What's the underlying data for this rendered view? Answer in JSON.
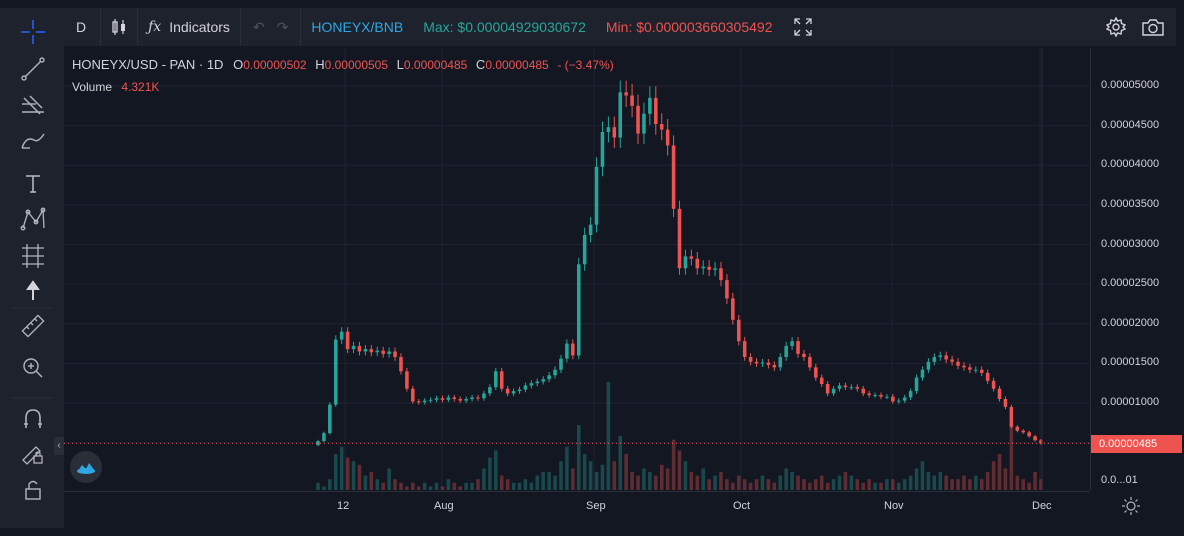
{
  "toolbar": {
    "interval": "D",
    "indicators_label": "Indicators",
    "symbol_link": "HONEYX/BNB",
    "max_label": "Max: $0.00004929030672",
    "min_label": "Min: $0.000003660305492"
  },
  "legend": {
    "symbol": "HONEYX/USD - PAN · 1D",
    "o_label": "O",
    "o_value": "0.00000502",
    "h_label": "H",
    "h_value": "0.00000505",
    "l_label": "L",
    "l_value": "0.00000485",
    "c_label": "C",
    "c_value": "0.00000485",
    "change": "- (−3.47%)",
    "volume_label": "Volume",
    "volume_value": "4.321K"
  },
  "price_axis": {
    "labels": [
      "0.00005000",
      "0.00004500",
      "0.00004000",
      "0.00003500",
      "0.00003000",
      "0.00002500",
      "0.00002000",
      "0.00001500",
      "0.00001000",
      "0.0...01"
    ],
    "last_price": "0.00000485"
  },
  "time_axis": {
    "labels": [
      "12",
      "Aug",
      "Sep",
      "Oct",
      "Nov",
      "Dec"
    ]
  },
  "colors": {
    "up": "#26a69a",
    "down": "#ef5350",
    "background": "#131722",
    "panel": "#1e222d",
    "accent": "#2962ff"
  },
  "icons": {
    "sidebar": [
      "crosshair-icon",
      "trendline-icon",
      "fib-icon",
      "brush-icon",
      "text-icon",
      "pattern-icon",
      "measure-icon",
      "arrow-up-icon",
      "ruler-icon",
      "zoom-icon",
      "magnet-icon",
      "lock-drawings-icon",
      "lock-icon"
    ],
    "top": [
      "candles-icon",
      "fx-icon",
      "undo-icon",
      "redo-icon",
      "fullscreen-icon",
      "settings-icon",
      "camera-icon"
    ]
  },
  "chart_data": {
    "type": "candlestick",
    "ylim": [
      0,
      5.3e-05
    ],
    "x_start": "2021-07-09",
    "x_end": "2021-12-01",
    "series": [
      {
        "name": "price",
        "values": [
          5.2e-06,
          6.2e-06,
          9.8e-06,
          1.8e-05,
          1.9e-05,
          1.68e-05,
          1.72e-05,
          1.65e-05,
          1.68e-05,
          1.64e-05,
          1.66e-05,
          1.62e-05,
          1.65e-05,
          1.58e-05,
          1.4e-05,
          1.18e-05,
          1.02e-05,
          1.01e-05,
          1.03e-05,
          1.04e-05,
          1.06e-05,
          1.04e-05,
          1.07e-05,
          1.05e-05,
          1.03e-05,
          1.05e-05,
          1.07e-05,
          1.06e-05,
          1.12e-05,
          1.2e-05,
          1.4e-05,
          1.18e-05,
          1.12e-05,
          1.15e-05,
          1.17e-05,
          1.22e-05,
          1.25e-05,
          1.27e-05,
          1.3e-05,
          1.35e-05,
          1.42e-05,
          1.56e-05,
          1.75e-05,
          1.6e-05,
          2.75e-05,
          3.12e-05,
          3.25e-05,
          3.98e-05,
          4.42e-05,
          4.48e-05,
          4.35e-05,
          4.92e-05,
          4.88e-05,
          4.75e-05,
          4.4e-05,
          4.65e-05,
          4.85e-05,
          4.52e-05,
          4.45e-05,
          4.25e-05,
          3.45e-05,
          2.7e-05,
          2.85e-05,
          2.82e-05,
          2.7e-05,
          2.72e-05,
          2.68e-05,
          2.7e-05,
          2.55e-05,
          2.32e-05,
          2.05e-05,
          1.78e-05,
          1.58e-05,
          1.52e-05,
          1.5e-05,
          1.51e-05,
          1.48e-05,
          1.45e-05,
          1.58e-05,
          1.72e-05,
          1.78e-05,
          1.62e-05,
          1.58e-05,
          1.45e-05,
          1.32e-05,
          1.24e-05,
          1.12e-05,
          1.18e-05,
          1.22e-05,
          1.2e-05,
          1.2e-05,
          1.18e-05,
          1.12e-05,
          1.1e-05,
          1.1e-05,
          1.08e-05,
          1.08e-05,
          1.02e-05,
          1.03e-05,
          1.07e-05,
          1.15e-05,
          1.32e-05,
          1.42e-05,
          1.52e-05,
          1.58e-05,
          1.6e-05,
          1.55e-05,
          1.52e-05,
          1.47e-05,
          1.45e-05,
          1.42e-05,
          1.42e-05,
          1.38e-05,
          1.28e-05,
          1.18e-05,
          1.05e-05,
          9.5e-06,
          7e-06,
          6.5e-06,
          6.3e-06,
          5.8e-06,
          5.3e-06,
          4.9e-06
        ]
      },
      {
        "name": "volume",
        "values": [
          2,
          1,
          3,
          10,
          12,
          9,
          8,
          7,
          4,
          5,
          3,
          2,
          6,
          3,
          2,
          1,
          2,
          1,
          2,
          1,
          2,
          1,
          3,
          2,
          1,
          2,
          2,
          3,
          6,
          9,
          11,
          4,
          3,
          2,
          2,
          3,
          2,
          4,
          5,
          5,
          4,
          8,
          12,
          6,
          18,
          10,
          8,
          5,
          7,
          30,
          8,
          15,
          10,
          5,
          4,
          6,
          5,
          4,
          7,
          6,
          14,
          11,
          8,
          5,
          4,
          6,
          3,
          4,
          5,
          3,
          2,
          4,
          3,
          2,
          3,
          4,
          3,
          2,
          4,
          6,
          5,
          4,
          3,
          2,
          3,
          4,
          2,
          3,
          4,
          5,
          4,
          3,
          2,
          3,
          2,
          2,
          3,
          3,
          2,
          3,
          4,
          6,
          8,
          5,
          4,
          5,
          4,
          3,
          3,
          4,
          3,
          4,
          3,
          5,
          8,
          10,
          6,
          18,
          4,
          3,
          2,
          5,
          3
        ]
      }
    ]
  }
}
